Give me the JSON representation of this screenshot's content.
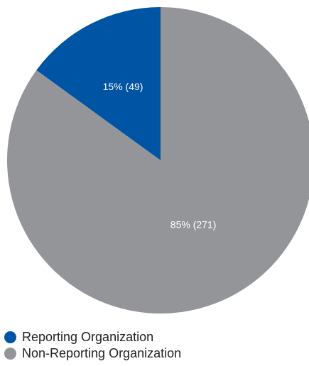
{
  "chart_data": {
    "type": "pie",
    "title": "",
    "slices": [
      {
        "name": "Reporting Organization",
        "percent": 15,
        "count": 49,
        "label": "15% (49)",
        "color": "#0054A4"
      },
      {
        "name": "Non-Reporting Organization",
        "percent": 85,
        "count": 271,
        "label": "85% (271)",
        "color": "#939598"
      }
    ],
    "legend_placement": "bottom-left"
  }
}
